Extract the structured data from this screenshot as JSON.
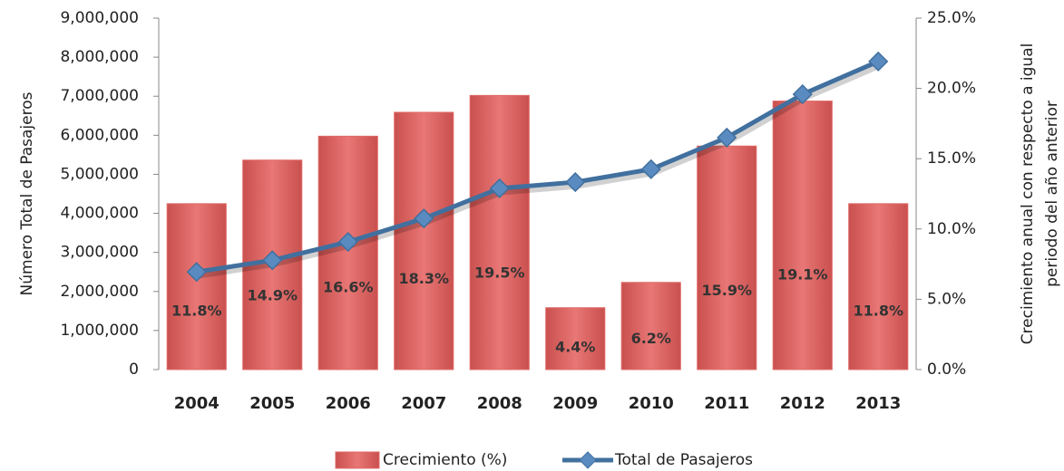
{
  "chart_data": {
    "type": "bar-line",
    "ylabel": "Número Total de Pasajeros",
    "y2label": [
      "Crecimiento anual con respecto a igual",
      "periodo del año anterior"
    ],
    "categories": [
      "2004",
      "2005",
      "2006",
      "2007",
      "2008",
      "2009",
      "2010",
      "2011",
      "2012",
      "2013"
    ],
    "series": [
      {
        "name": "Crecimiento (%)",
        "type": "bar",
        "axis": "y2",
        "color": "#e06a68",
        "values": [
          11.8,
          14.9,
          16.6,
          18.3,
          19.5,
          4.4,
          6.2,
          15.9,
          19.1,
          11.8
        ],
        "value_labels": [
          "11.8%",
          "14.9%",
          "16.6%",
          "18.3%",
          "19.5%",
          "4.4%",
          "6.2%",
          "15.9%",
          "19.1%",
          "11.8%"
        ]
      },
      {
        "name": "Total de Pasajeros",
        "type": "line",
        "axis": "y",
        "color": "#41709f",
        "values": [
          2500000,
          2800000,
          3270000,
          3870000,
          4640000,
          4800000,
          5130000,
          5940000,
          7050000,
          7890000
        ]
      }
    ],
    "ylim": [
      0,
      9000000
    ],
    "yticks": [
      0,
      {
        "value": 1000000,
        "label": "1,000,000"
      },
      {
        "value": 2000000,
        "label": "2,000,000"
      },
      {
        "value": 3000000,
        "label": "3,000,000"
      },
      {
        "value": 4000000,
        "label": "4,000,000"
      },
      {
        "value": 5000000,
        "label": "5,000,000"
      },
      {
        "value": 6000000,
        "label": "6,000,000"
      },
      {
        "value": 7000000,
        "label": "7,000,000"
      },
      {
        "value": 8000000,
        "label": "8,000,000"
      },
      {
        "value": 9000000,
        "label": "9,000,000"
      }
    ],
    "y2lim": [
      0,
      25
    ],
    "y2ticks": [
      {
        "value": 0,
        "label": "0.0%"
      },
      {
        "value": 5,
        "label": "5.0%"
      },
      {
        "value": 10,
        "label": "10.0%"
      },
      {
        "value": 15,
        "label": "15.0%"
      },
      {
        "value": 20,
        "label": "20.0%"
      },
      {
        "value": 25,
        "label": "25.0%"
      }
    ]
  }
}
